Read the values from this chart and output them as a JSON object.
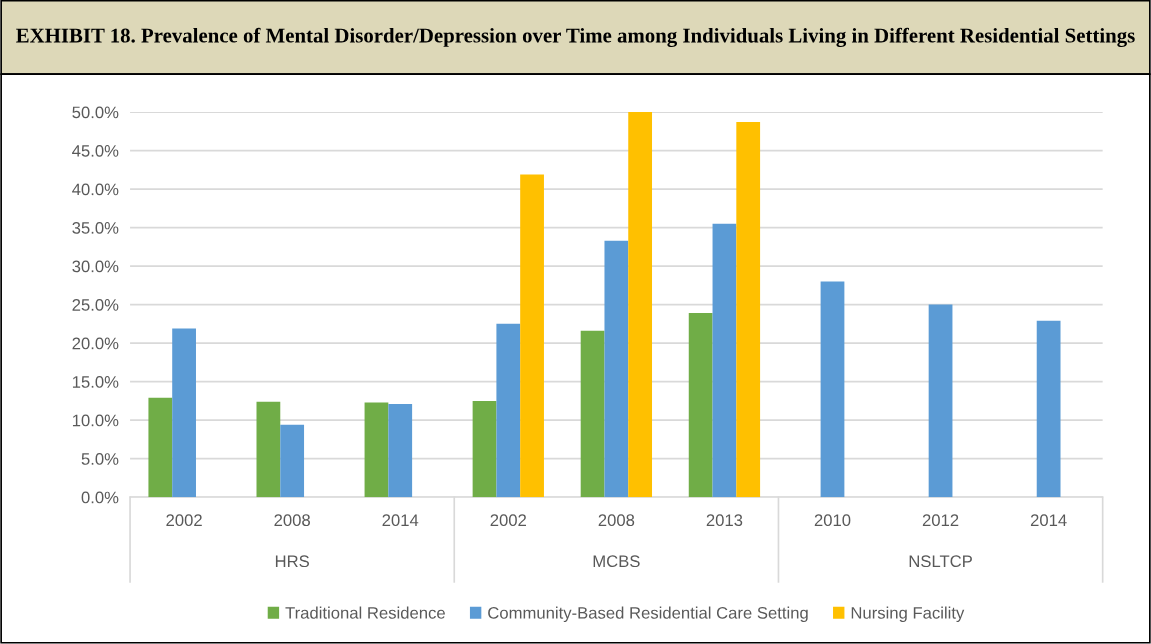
{
  "chart_data": {
    "type": "bar",
    "title": "EXHIBIT 18. Prevalence of Mental Disorder/Depression over Time among Individuals Living in Different Residential Settings",
    "categories": [
      "2002",
      "2008",
      "2014",
      "2002",
      "2008",
      "2013",
      "2010",
      "2012",
      "2014"
    ],
    "annotations": [
      "HRS",
      "MCBS",
      "NSLTCP"
    ],
    "series": [
      {
        "name": "Traditional Residence",
        "color": "#70ad47",
        "values": [
          12.9,
          12.4,
          12.3,
          12.5,
          21.6,
          23.9,
          null,
          null,
          null
        ]
      },
      {
        "name": "Community-Based Residential Care Setting",
        "color": "#5b9bd5",
        "values": [
          21.9,
          9.4,
          12.1,
          22.5,
          33.3,
          35.5,
          28.0,
          25.0,
          22.9
        ]
      },
      {
        "name": "Nursing Facility",
        "color": "#ffc000",
        "values": [
          null,
          null,
          null,
          41.9,
          50.0,
          48.7,
          null,
          null,
          null
        ]
      }
    ],
    "ylim": [
      0,
      50
    ],
    "yticks": [
      {
        "value": 0,
        "label": "0.0%"
      },
      {
        "value": 5,
        "label": "5.0%"
      },
      {
        "value": 10,
        "label": "10.0%"
      },
      {
        "value": 15,
        "label": "15.0%"
      },
      {
        "value": 20,
        "label": "20.0%"
      },
      {
        "value": 25,
        "label": "25.0%"
      },
      {
        "value": 30,
        "label": "30.0%"
      },
      {
        "value": 35,
        "label": "35.0%"
      },
      {
        "value": 40,
        "label": "40.0%"
      },
      {
        "value": 45,
        "label": "45.0%"
      },
      {
        "value": 50,
        "label": "50.0%"
      }
    ],
    "grid": "y",
    "legend": "bottom"
  }
}
